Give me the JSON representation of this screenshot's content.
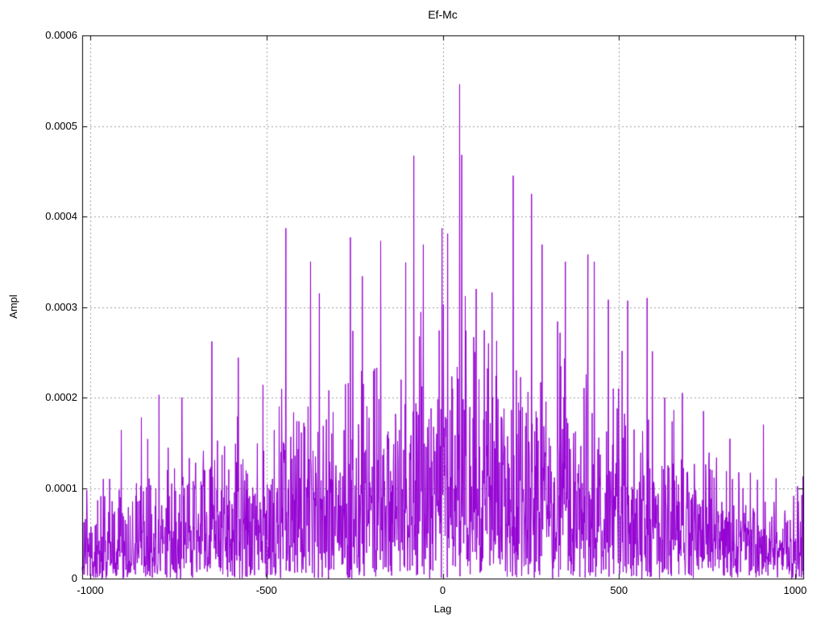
{
  "chart_data": {
    "type": "line",
    "title": "Ef-Mc",
    "xlabel": "Lag",
    "ylabel": "Ampl",
    "xlim": [
      -1023,
      1023
    ],
    "ylim": [
      0,
      0.0006
    ],
    "x_tick_values": [
      -1000,
      -500,
      0,
      500,
      1000
    ],
    "x_tick_labels": [
      "-1000",
      "-500",
      "0",
      "500",
      "1000"
    ],
    "y_tick_values": [
      0,
      0.0001,
      0.0002,
      0.0003,
      0.0004,
      0.0005,
      0.0006
    ],
    "y_tick_labels": [
      "0",
      "0.0001",
      "0.0002",
      "0.0003",
      "0.0004",
      "0.0005",
      "0.0006"
    ],
    "grid": true,
    "grid_style": "dashed",
    "legend": "none",
    "colors": {
      "line": "#9400d3",
      "grid": "#9e9e9e",
      "frame": "#000000",
      "background": "#ffffff",
      "text": "#000000"
    },
    "series": [
      {
        "name": "Ef-Mc",
        "color": "#9400d3",
        "style": "dense noisy correlation trace, |noise| with triangular envelope peaking near lag 0",
        "n_points": 2047,
        "seed": 1337,
        "envelope_sigma": [
          [
            -1023,
            4.2e-05
          ],
          [
            -900,
            4.8e-05
          ],
          [
            -750,
            5.6e-05
          ],
          [
            -600,
            7e-05
          ],
          [
            -450,
            8e-05
          ],
          [
            -300,
            9.5e-05
          ],
          [
            -150,
            0.000105
          ],
          [
            -50,
            0.000115
          ],
          [
            50,
            0.00012
          ],
          [
            150,
            0.000115
          ],
          [
            300,
            0.000105
          ],
          [
            450,
            9.5e-05
          ],
          [
            550,
            8.5e-05
          ],
          [
            650,
            7e-05
          ],
          [
            750,
            5.8e-05
          ],
          [
            850,
            5e-05
          ],
          [
            950,
            4.8e-05
          ],
          [
            1023,
            4.4e-05
          ]
        ],
        "peaks": [
          [
            -912,
            0.000164
          ],
          [
            -855,
            0.000178
          ],
          [
            -805,
            0.000203
          ],
          [
            -740,
            0.0002
          ],
          [
            -655,
            0.000262
          ],
          [
            -580,
            0.000244
          ],
          [
            -510,
            0.000214
          ],
          [
            -445,
            0.000387
          ],
          [
            -375,
            0.00035
          ],
          [
            -350,
            0.000315
          ],
          [
            -262,
            0.000377
          ],
          [
            -228,
            0.000334
          ],
          [
            -176,
            0.000373
          ],
          [
            -105,
            0.000349
          ],
          [
            -82,
            0.000467
          ],
          [
            -55,
            0.000369
          ],
          [
            -2,
            0.000387
          ],
          [
            14,
            0.000381
          ],
          [
            48,
            0.000546
          ],
          [
            54,
            0.000468
          ],
          [
            95,
            0.00032
          ],
          [
            140,
            0.000316
          ],
          [
            200,
            0.000445
          ],
          [
            252,
            0.000425
          ],
          [
            282,
            0.000369
          ],
          [
            348,
            0.00035
          ],
          [
            412,
            0.000358
          ],
          [
            430,
            0.00035
          ],
          [
            470,
            0.000308
          ],
          [
            525,
            0.000307
          ],
          [
            580,
            0.00031
          ],
          [
            595,
            0.000251
          ],
          [
            630,
            0.0002
          ],
          [
            680,
            0.000205
          ],
          [
            740,
            0.000185
          ],
          [
            910,
            0.00017
          ]
        ]
      }
    ]
  }
}
